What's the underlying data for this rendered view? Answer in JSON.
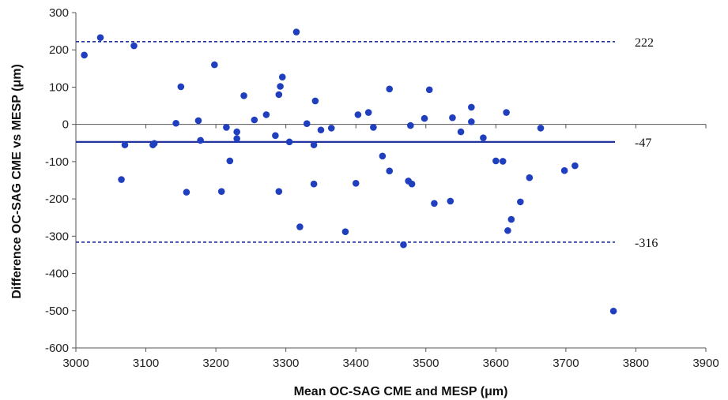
{
  "chart_data": {
    "type": "scatter",
    "title": "",
    "xlabel": "Mean OC-SAG CME and MESP (μm)",
    "ylabel": "Difference OC-SAG CME vs MESP (μm)",
    "xlim": [
      3000,
      3900
    ],
    "ylim": [
      -600,
      300
    ],
    "x_ticks": [
      3000,
      3100,
      3200,
      3300,
      3400,
      3500,
      3600,
      3700,
      3800,
      3900
    ],
    "y_ticks": [
      300,
      200,
      100,
      0,
      -100,
      -200,
      -300,
      -400,
      -500,
      -600
    ],
    "grid": false,
    "point_color": "#1f3fbf",
    "line_color": "#2233a0",
    "reference_lines": [
      {
        "name": "upper-limit",
        "y": 222,
        "label": "222",
        "style": "dashed"
      },
      {
        "name": "mean-difference",
        "y": -47,
        "label": "-47",
        "style": "solid"
      },
      {
        "name": "lower-limit",
        "y": -316,
        "label": "-316",
        "style": "dashed"
      }
    ],
    "points": [
      {
        "x": 3012,
        "y": 186
      },
      {
        "x": 3035,
        "y": 233
      },
      {
        "x": 3083,
        "y": 211
      },
      {
        "x": 3065,
        "y": -148
      },
      {
        "x": 3070,
        "y": -55
      },
      {
        "x": 3110,
        "y": -55
      },
      {
        "x": 3112,
        "y": -51
      },
      {
        "x": 3143,
        "y": 3
      },
      {
        "x": 3150,
        "y": 101
      },
      {
        "x": 3158,
        "y": -182
      },
      {
        "x": 3175,
        "y": 10
      },
      {
        "x": 3178,
        "y": -43
      },
      {
        "x": 3198,
        "y": 160
      },
      {
        "x": 3208,
        "y": -180
      },
      {
        "x": 3215,
        "y": -8
      },
      {
        "x": 3220,
        "y": -98
      },
      {
        "x": 3230,
        "y": -20
      },
      {
        "x": 3230,
        "y": -38
      },
      {
        "x": 3240,
        "y": 77
      },
      {
        "x": 3255,
        "y": 12
      },
      {
        "x": 3272,
        "y": 26
      },
      {
        "x": 3285,
        "y": -30
      },
      {
        "x": 3290,
        "y": 80
      },
      {
        "x": 3292,
        "y": 102
      },
      {
        "x": 3295,
        "y": 127
      },
      {
        "x": 3290,
        "y": -180
      },
      {
        "x": 3305,
        "y": -47
      },
      {
        "x": 3315,
        "y": 248
      },
      {
        "x": 3320,
        "y": -275
      },
      {
        "x": 3330,
        "y": 2
      },
      {
        "x": 3340,
        "y": -55
      },
      {
        "x": 3340,
        "y": -160
      },
      {
        "x": 3342,
        "y": 63
      },
      {
        "x": 3350,
        "y": -15
      },
      {
        "x": 3365,
        "y": -10
      },
      {
        "x": 3385,
        "y": -288
      },
      {
        "x": 3400,
        "y": -158
      },
      {
        "x": 3403,
        "y": 26
      },
      {
        "x": 3418,
        "y": 32
      },
      {
        "x": 3425,
        "y": -8
      },
      {
        "x": 3438,
        "y": -85
      },
      {
        "x": 3448,
        "y": 95
      },
      {
        "x": 3448,
        "y": -125
      },
      {
        "x": 3468,
        "y": -323
      },
      {
        "x": 3475,
        "y": -152
      },
      {
        "x": 3478,
        "y": -3
      },
      {
        "x": 3480,
        "y": -160
      },
      {
        "x": 3498,
        "y": 16
      },
      {
        "x": 3505,
        "y": 93
      },
      {
        "x": 3512,
        "y": -212
      },
      {
        "x": 3535,
        "y": -206
      },
      {
        "x": 3538,
        "y": 18
      },
      {
        "x": 3550,
        "y": -20
      },
      {
        "x": 3565,
        "y": 46
      },
      {
        "x": 3565,
        "y": 7
      },
      {
        "x": 3582,
        "y": -36
      },
      {
        "x": 3600,
        "y": -98
      },
      {
        "x": 3610,
        "y": -99
      },
      {
        "x": 3615,
        "y": 32
      },
      {
        "x": 3617,
        "y": -285
      },
      {
        "x": 3622,
        "y": -255
      },
      {
        "x": 3635,
        "y": -208
      },
      {
        "x": 3648,
        "y": -143
      },
      {
        "x": 3664,
        "y": -10
      },
      {
        "x": 3698,
        "y": -124
      },
      {
        "x": 3713,
        "y": -111
      },
      {
        "x": 3768,
        "y": -501
      }
    ]
  }
}
